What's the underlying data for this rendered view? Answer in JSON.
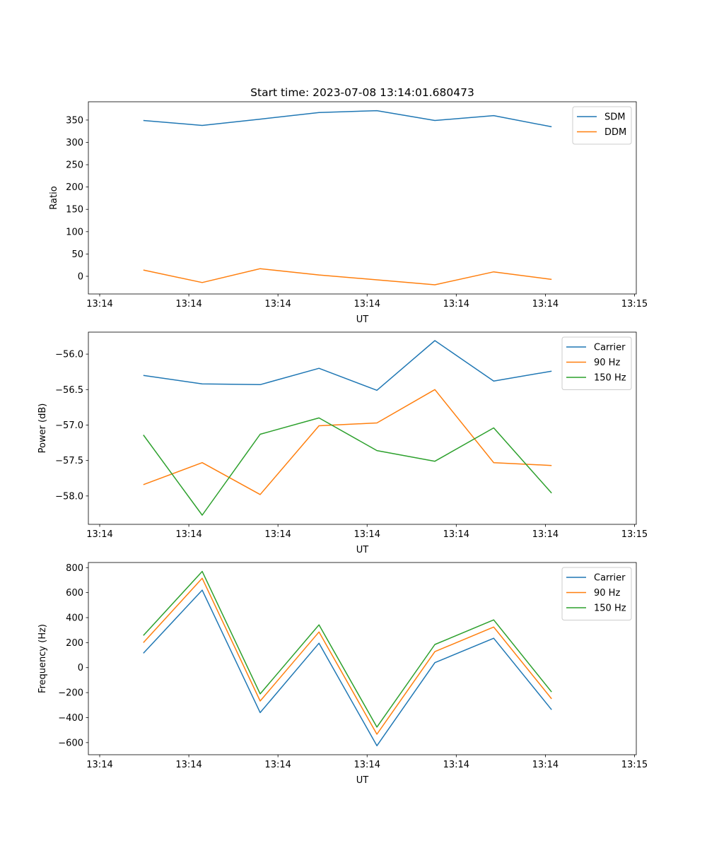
{
  "chart_data": [
    {
      "type": "line",
      "title": "Start time: 2023-07-08 13:14:01.680473",
      "xlabel": "UT",
      "ylabel": "Ratio",
      "xlim": [
        -1.27,
        60.2
      ],
      "ylim": [
        -39.6,
        391
      ],
      "xticks": [
        0,
        10,
        20,
        30,
        40,
        50,
        60
      ],
      "xticklabels": [
        "13:14",
        "13:14",
        "13:14",
        "13:14",
        "13:14",
        "13:14",
        "13:15"
      ],
      "yticks": [
        0,
        50,
        100,
        150,
        200,
        250,
        300,
        350
      ],
      "yticklabels": [
        "0",
        "50",
        "100",
        "150",
        "200",
        "250",
        "300",
        "350"
      ],
      "legend": "top-right",
      "x": [
        4.9,
        11.5,
        18.0,
        24.6,
        31.1,
        37.6,
        44.2,
        50.7
      ],
      "series": [
        {
          "name": "SDM",
          "color": "#1f77b4",
          "values": [
            349,
            338,
            352,
            367,
            371,
            349,
            360,
            335
          ]
        },
        {
          "name": "DDM",
          "color": "#ff7f0e",
          "values": [
            14,
            -14,
            17,
            3,
            -8,
            -19,
            10,
            -7
          ]
        }
      ]
    },
    {
      "type": "line",
      "xlabel": "UT",
      "ylabel": "Power (dB)",
      "xlim": [
        -1.27,
        60.2
      ],
      "ylim": [
        -58.4,
        -55.69
      ],
      "xticks": [
        0,
        10,
        20,
        30,
        40,
        50,
        60
      ],
      "xticklabels": [
        "13:14",
        "13:14",
        "13:14",
        "13:14",
        "13:14",
        "13:14",
        "13:15"
      ],
      "yticks": [
        -58.0,
        -57.5,
        -57.0,
        -56.5,
        -56.0
      ],
      "yticklabels": [
        "−58.0",
        "−57.5",
        "−57.0",
        "−56.5",
        "−56.0"
      ],
      "legend": "top-right",
      "x": [
        4.9,
        11.5,
        18.0,
        24.6,
        31.1,
        37.6,
        44.2,
        50.7
      ],
      "series": [
        {
          "name": "Carrier",
          "color": "#1f77b4",
          "values": [
            -56.3,
            -56.42,
            -56.43,
            -56.2,
            -56.51,
            -55.81,
            -56.38,
            -56.24
          ]
        },
        {
          "name": "90 Hz",
          "color": "#ff7f0e",
          "values": [
            -57.84,
            -57.53,
            -57.98,
            -57.01,
            -56.97,
            -56.5,
            -57.53,
            -57.57
          ]
        },
        {
          "name": "150 Hz",
          "color": "#2ca02c",
          "values": [
            -57.14,
            -58.27,
            -57.13,
            -56.9,
            -57.36,
            -57.51,
            -57.04,
            -57.96
          ]
        }
      ]
    },
    {
      "type": "line",
      "xlabel": "UT",
      "ylabel": "Frequency (Hz)",
      "xlim": [
        -1.27,
        60.2
      ],
      "ylim": [
        -697,
        841
      ],
      "xticks": [
        0,
        10,
        20,
        30,
        40,
        50,
        60
      ],
      "xticklabels": [
        "13:14",
        "13:14",
        "13:14",
        "13:14",
        "13:14",
        "13:14",
        "13:15"
      ],
      "yticks": [
        -600,
        -400,
        -200,
        0,
        200,
        400,
        600,
        800
      ],
      "yticklabels": [
        "−600",
        "−400",
        "−200",
        "0",
        "200",
        "400",
        "600",
        "800"
      ],
      "legend": "top-right",
      "x": [
        4.9,
        11.5,
        18.0,
        24.6,
        31.1,
        37.6,
        44.2,
        50.7
      ],
      "series": [
        {
          "name": "Carrier",
          "color": "#1f77b4",
          "values": [
            115,
            620,
            -360,
            195,
            -625,
            40,
            235,
            -337
          ]
        },
        {
          "name": "90 Hz",
          "color": "#ff7f0e",
          "values": [
            200,
            715,
            -267,
            285,
            -533,
            128,
            325,
            -250
          ]
        },
        {
          "name": "150 Hz",
          "color": "#2ca02c",
          "values": [
            257,
            770,
            -210,
            342,
            -476,
            185,
            382,
            -195
          ]
        }
      ]
    }
  ]
}
